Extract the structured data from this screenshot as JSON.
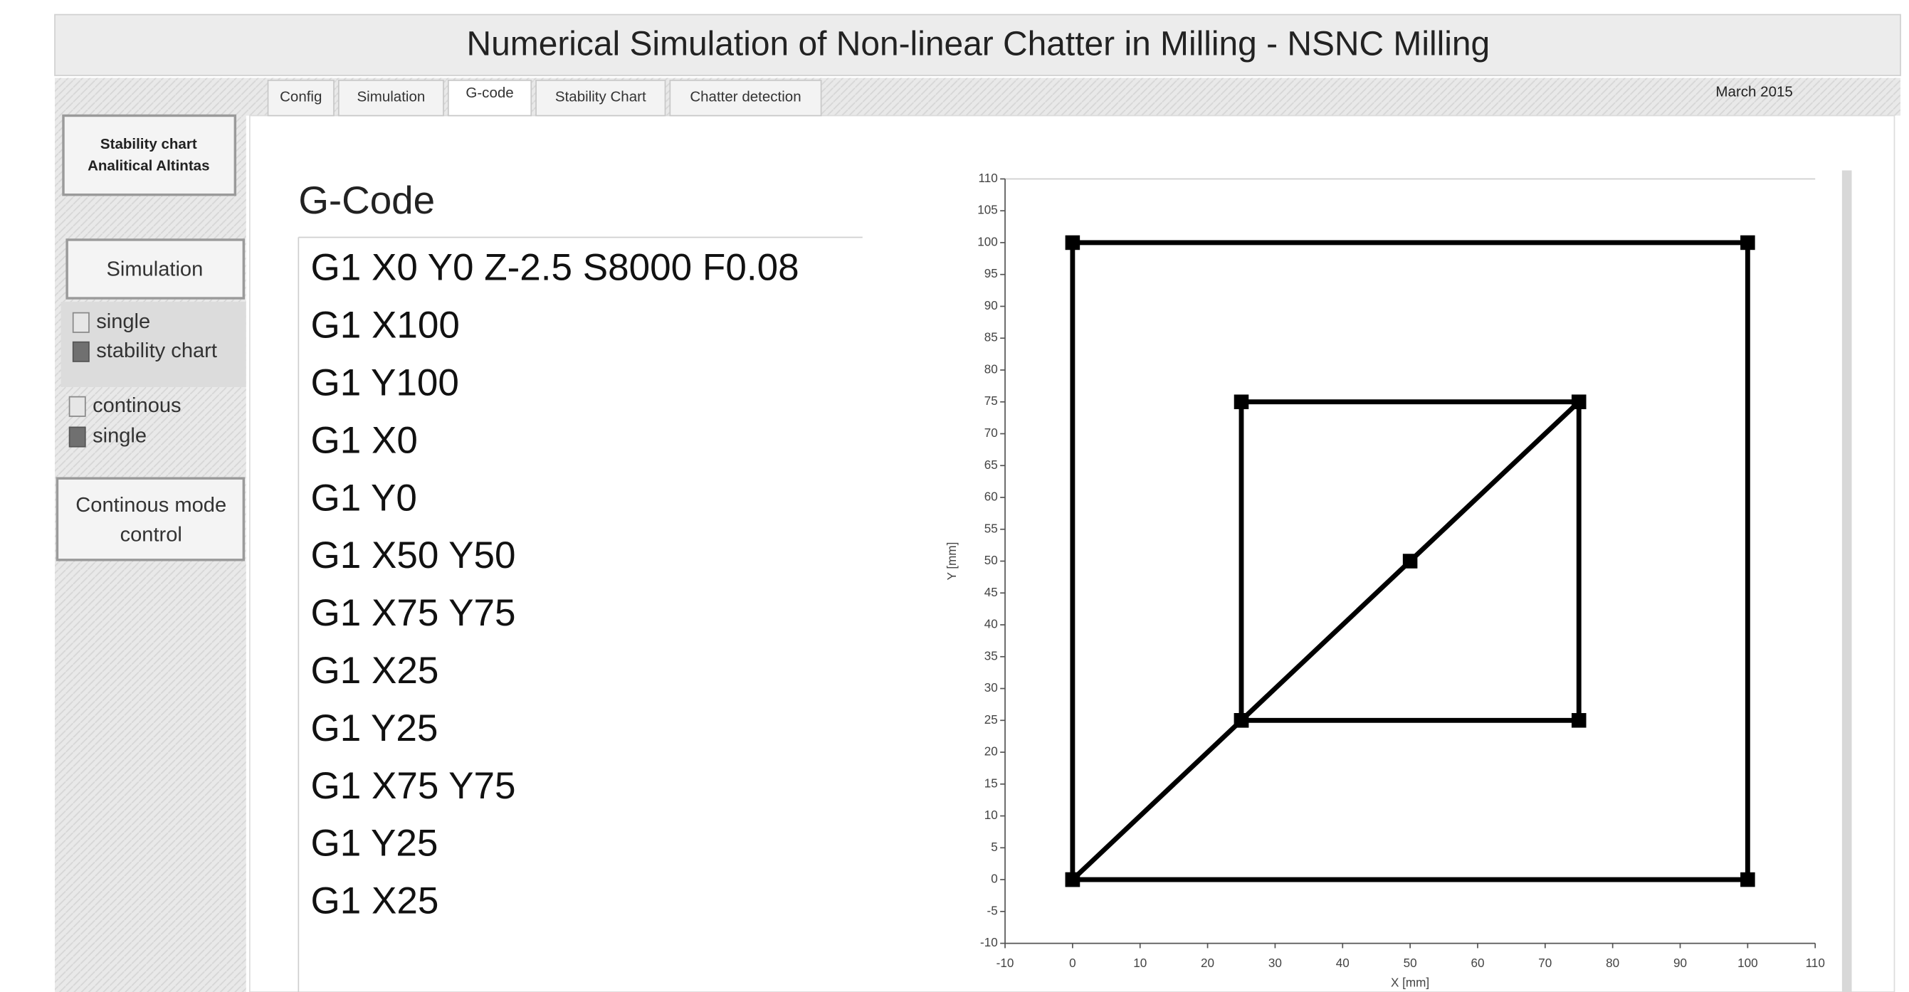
{
  "header": {
    "title": "Numerical Simulation of Non-linear Chatter in Milling - NSNC Milling",
    "date": "March 2015"
  },
  "tabs": [
    "Config",
    "Simulation",
    "G-code",
    "Stability Chart",
    "Chatter detection"
  ],
  "sidebar": {
    "stability_button": [
      "Stability chart",
      "Analitical Altintas"
    ],
    "simulation_button": "Simulation",
    "mode_options": [
      "single",
      "stability chart"
    ],
    "run_options": [
      "continous",
      "single"
    ],
    "continuous_button": [
      "Continous mode",
      "control"
    ]
  },
  "gcode": {
    "label": "G-Code",
    "lines": [
      "G1 X0 Y0 Z-2.5 S8000 F0.08",
      "G1 X100",
      "G1 Y100",
      "G1 X0",
      "G1 Y0",
      "G1 X50 Y50",
      "G1 X75 Y75",
      "G1 X25",
      "G1 Y25",
      "G1 X75 Y75",
      "G1 Y25",
      "G1 X25"
    ]
  },
  "chart_data": {
    "type": "line",
    "x": [
      0,
      100,
      100,
      0,
      0,
      50,
      75,
      25,
      25,
      75,
      75,
      25
    ],
    "values": [
      0,
      0,
      100,
      100,
      0,
      50,
      75,
      75,
      25,
      75,
      25,
      25
    ],
    "color": "#000000",
    "x_label": "X [mm]",
    "y_label": "Y [mm]",
    "xlim": [
      -10,
      110
    ],
    "ylim": [
      -10,
      110
    ],
    "xticks": [
      -10,
      0,
      10,
      20,
      30,
      40,
      50,
      60,
      70,
      80,
      90,
      100,
      110
    ],
    "yticks": [
      -10,
      -5,
      0,
      5,
      10,
      15,
      20,
      25,
      30,
      35,
      40,
      45,
      50,
      55,
      60,
      65,
      70,
      75,
      80,
      85,
      90,
      95,
      100,
      105,
      110
    ]
  }
}
